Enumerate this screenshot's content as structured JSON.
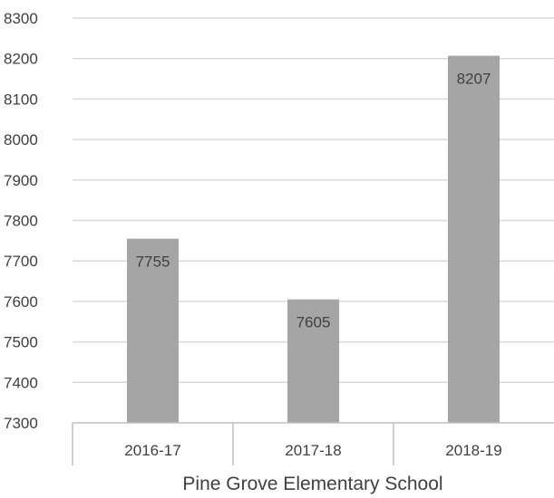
{
  "chart_data": {
    "type": "bar",
    "categories": [
      "2016-17",
      "2017-18",
      "2018-19"
    ],
    "values": [
      7755,
      7605,
      8207
    ],
    "data_labels": [
      "7755",
      "7605",
      "8207"
    ],
    "title": "",
    "xlabel": "Pine Grove Elementary School",
    "ylabel": "",
    "ylim": [
      7300,
      8300
    ],
    "yticks": [
      "7300",
      "7400",
      "7500",
      "7600",
      "7700",
      "7800",
      "7900",
      "8000",
      "8100",
      "8200",
      "8300"
    ],
    "grid": true,
    "legend": "none",
    "bar_color": "#a5a5a5"
  }
}
